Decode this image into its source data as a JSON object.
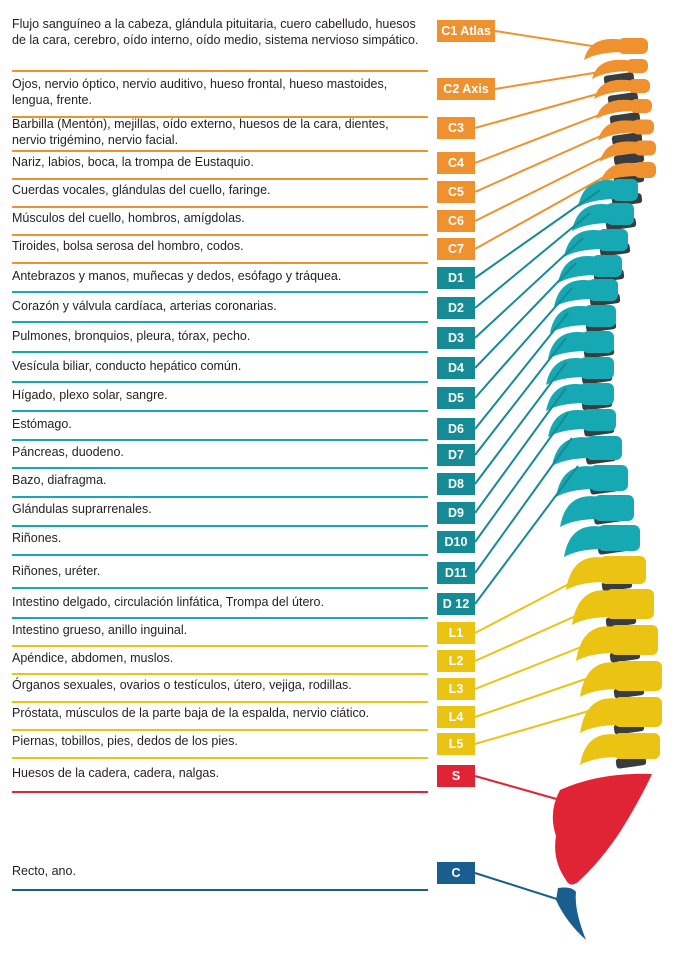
{
  "colors": {
    "cervical": "#f0912f",
    "dorsal": "#17a9b3",
    "dorsal_label": "#168a95",
    "lumbar": "#ebc313",
    "sacrum": "#e12336",
    "coccyx": "#1a5e8f",
    "disc": "#3a3d40"
  },
  "rows": [
    {
      "code": "C1 Atlas",
      "group": "cervical",
      "text": "Flujo sanguíneo a la cabeza, glándula pituitaria, cuero cabelludo, huesos de la cara, cerebro, oído interno, oído medio, sistema nervioso simpático."
    },
    {
      "code": "C2 Axis",
      "group": "cervical",
      "text": "Ojos, nervio óptico, nervio auditivo, hueso frontal, hueso mastoides, lengua, frente."
    },
    {
      "code": "C3",
      "group": "cervical",
      "text": "Barbilla (Mentón), mejillas, oído externo, huesos de la cara, dientes, nervio trigémino, nervio facial."
    },
    {
      "code": "C4",
      "group": "cervical",
      "text": "Nariz, labios, boca, la trompa de Eustaquio."
    },
    {
      "code": "C5",
      "group": "cervical",
      "text": "Cuerdas vocales, glándulas del cuello, faringe."
    },
    {
      "code": "C6",
      "group": "cervical",
      "text": "Músculos del cuello, hombros, amígdolas."
    },
    {
      "code": "C7",
      "group": "cervical",
      "text": "Tiroides, bolsa serosa del hombro, codos."
    },
    {
      "code": "D1",
      "group": "dorsal",
      "text": "Antebrazos y manos, muñecas y dedos, esófago y tráquea."
    },
    {
      "code": "D2",
      "group": "dorsal",
      "text": "Corazón y válvula cardíaca, arterias coronarias."
    },
    {
      "code": "D3",
      "group": "dorsal",
      "text": "Pulmones, bronquios, pleura, tórax, pecho."
    },
    {
      "code": "D4",
      "group": "dorsal",
      "text": "Vesícula biliar, conducto hepático común."
    },
    {
      "code": "D5",
      "group": "dorsal",
      "text": "Hígado, plexo solar, sangre."
    },
    {
      "code": "D6",
      "group": "dorsal",
      "text": "Estómago."
    },
    {
      "code": "D7",
      "group": "dorsal",
      "text": "Páncreas, duodeno."
    },
    {
      "code": "D8",
      "group": "dorsal",
      "text": "Bazo, diafragma."
    },
    {
      "code": "D9",
      "group": "dorsal",
      "text": "Glándulas suprarrenales."
    },
    {
      "code": "D10",
      "group": "dorsal",
      "text": "Riñones."
    },
    {
      "code": "D11",
      "group": "dorsal",
      "text": "Riñones, uréter."
    },
    {
      "code": "D 12",
      "group": "dorsal",
      "text": "Intestino delgado, circulación linfática, Trompa del útero."
    },
    {
      "code": "L1",
      "group": "lumbar",
      "text": "Intestino grueso, anillo inguinal."
    },
    {
      "code": "L2",
      "group": "lumbar",
      "text": "Apéndice, abdomen, muslos."
    },
    {
      "code": "L3",
      "group": "lumbar",
      "text": "Órganos sexuales, ovarios o testículos, útero, vejiga, rodillas."
    },
    {
      "code": "L4",
      "group": "lumbar",
      "text": "Próstata, músculos de la parte baja de la espalda, nervio ciático."
    },
    {
      "code": "L5",
      "group": "lumbar",
      "text": "Piernas, tobillos, pies, dedos de los pies."
    },
    {
      "code": "S",
      "group": "sacrum",
      "text": "Huesos de la cadera, cadera, nalgas."
    },
    {
      "code": "C",
      "group": "coccyx",
      "text": "Recto, ano."
    }
  ]
}
